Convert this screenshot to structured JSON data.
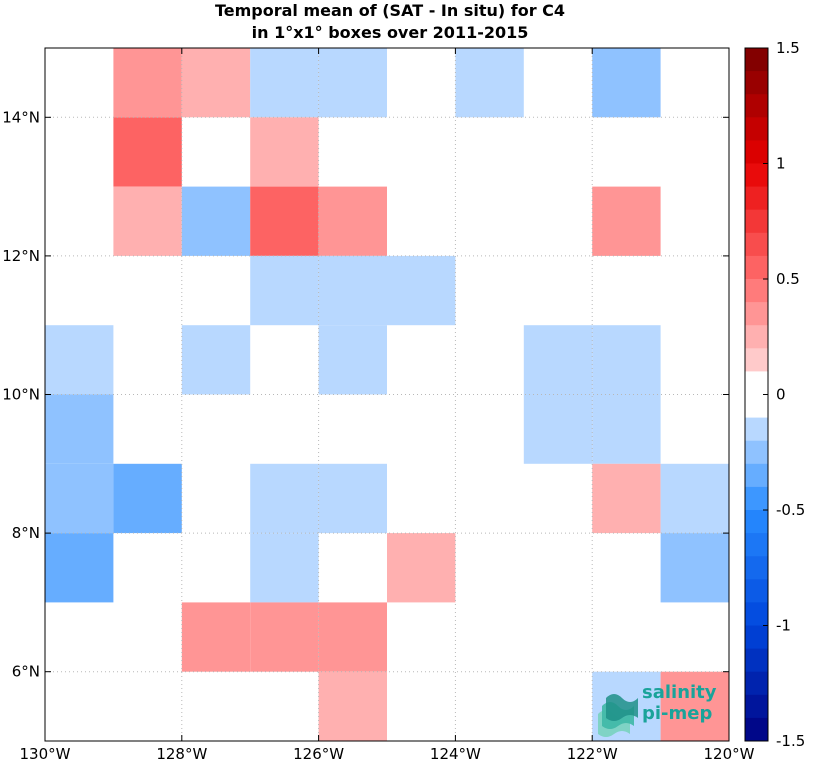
{
  "chart_data": {
    "type": "heatmap",
    "title_lines": [
      "Temporal mean of (SAT - In situ) for C4",
      "in 1°x1° boxes over 2011-2015"
    ],
    "x_range": [
      -130,
      -120
    ],
    "y_range": [
      5,
      15
    ],
    "x_ticks": [
      {
        "value": -130,
        "label": "130°W"
      },
      {
        "value": -128,
        "label": "128°W"
      },
      {
        "value": -126,
        "label": "126°W"
      },
      {
        "value": -124,
        "label": "124°W"
      },
      {
        "value": -122,
        "label": "122°W"
      },
      {
        "value": -120,
        "label": "120°W"
      }
    ],
    "y_ticks": [
      {
        "value": 6,
        "label": "6°N"
      },
      {
        "value": 8,
        "label": "8°N"
      },
      {
        "value": 10,
        "label": "10°N"
      },
      {
        "value": 12,
        "label": "12°N"
      },
      {
        "value": 14,
        "label": "14°N"
      }
    ],
    "grid": true,
    "colorbar": {
      "range": [
        -1.5,
        1.5
      ],
      "levels": 30,
      "ticks": [
        {
          "value": 1.5,
          "label": "1.5"
        },
        {
          "value": 1,
          "label": "1"
        },
        {
          "value": 0.5,
          "label": "0.5"
        },
        {
          "value": 0,
          "label": "0"
        },
        {
          "value": -0.5,
          "label": "-0.5"
        },
        {
          "value": -1,
          "label": "-1"
        },
        {
          "value": -1.5,
          "label": "-1.5"
        }
      ]
    },
    "cells": [
      {
        "lon": -129,
        "lat": 14,
        "value": 0.4
      },
      {
        "lon": -128,
        "lat": 14,
        "value": 0.2
      },
      {
        "lon": -127,
        "lat": 14,
        "value": -0.15
      },
      {
        "lon": -126,
        "lat": 14,
        "value": -0.15
      },
      {
        "lon": -124,
        "lat": 14,
        "value": -0.15
      },
      {
        "lon": -122,
        "lat": 14,
        "value": -0.25
      },
      {
        "lon": -129,
        "lat": 13,
        "value": 0.55
      },
      {
        "lon": -127,
        "lat": 13,
        "value": 0.2
      },
      {
        "lon": -129,
        "lat": 12,
        "value": 0.2
      },
      {
        "lon": -128,
        "lat": 12,
        "value": -0.25
      },
      {
        "lon": -127,
        "lat": 12,
        "value": 0.55
      },
      {
        "lon": -126,
        "lat": 12,
        "value": 0.4
      },
      {
        "lon": -122,
        "lat": 12,
        "value": 0.3
      },
      {
        "lon": -127,
        "lat": 11,
        "value": -0.15
      },
      {
        "lon": -126,
        "lat": 11,
        "value": -0.15
      },
      {
        "lon": -125,
        "lat": 11,
        "value": -0.15
      },
      {
        "lon": -130,
        "lat": 10,
        "value": -0.15
      },
      {
        "lon": -128,
        "lat": 10,
        "value": -0.15
      },
      {
        "lon": -126,
        "lat": 10,
        "value": -0.15
      },
      {
        "lon": -123,
        "lat": 10,
        "value": -0.15
      },
      {
        "lon": -122,
        "lat": 10,
        "value": -0.15
      },
      {
        "lon": -130,
        "lat": 9,
        "value": -0.25
      },
      {
        "lon": -123,
        "lat": 9,
        "value": -0.15
      },
      {
        "lon": -122,
        "lat": 9,
        "value": -0.15
      },
      {
        "lon": -130,
        "lat": 8,
        "value": -0.25
      },
      {
        "lon": -129,
        "lat": 8,
        "value": -0.35
      },
      {
        "lon": -127,
        "lat": 8,
        "value": -0.15
      },
      {
        "lon": -126,
        "lat": 8,
        "value": -0.15
      },
      {
        "lon": -122,
        "lat": 8,
        "value": 0.2
      },
      {
        "lon": -121,
        "lat": 8,
        "value": -0.15
      },
      {
        "lon": -130,
        "lat": 7,
        "value": -0.35
      },
      {
        "lon": -127,
        "lat": 7,
        "value": -0.15
      },
      {
        "lon": -125,
        "lat": 7,
        "value": 0.2
      },
      {
        "lon": -121,
        "lat": 7,
        "value": -0.25
      },
      {
        "lon": -128,
        "lat": 6,
        "value": 0.3
      },
      {
        "lon": -127,
        "lat": 6,
        "value": 0.4
      },
      {
        "lon": -126,
        "lat": 6,
        "value": 0.3
      },
      {
        "lon": -126,
        "lat": 5,
        "value": 0.2
      },
      {
        "lon": -122,
        "lat": 5,
        "value": -0.15
      },
      {
        "lon": -121,
        "lat": 5,
        "value": 0.3
      }
    ]
  },
  "logo": {
    "line1": "salinity",
    "line2": "pi-mep",
    "color": "#1aa39a"
  }
}
